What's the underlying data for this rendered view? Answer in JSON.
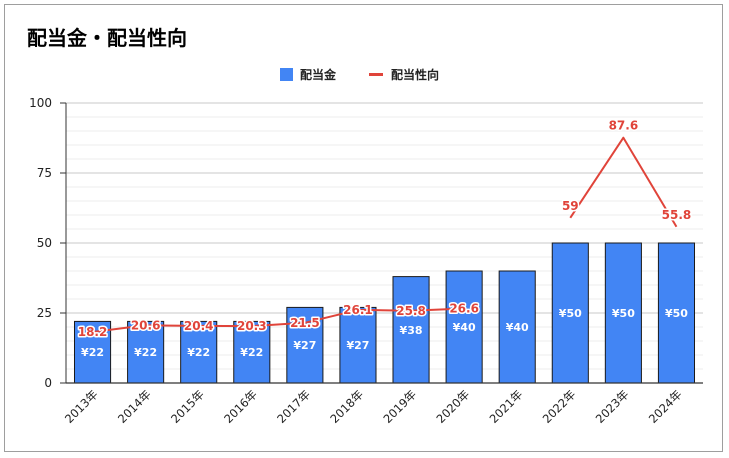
{
  "chart_data": {
    "type": "bar",
    "title": "配当金・配当性向",
    "categories": [
      "2013年",
      "2014年",
      "2015年",
      "2016年",
      "2017年",
      "2018年",
      "2019年",
      "2020年",
      "2021年",
      "2022年",
      "2023年",
      "2024年"
    ],
    "series": [
      {
        "name": "配当金",
        "type": "bar",
        "color": "#4285f4",
        "values": [
          22,
          22,
          22,
          22,
          27,
          27,
          38,
          40,
          40,
          50,
          50,
          50
        ],
        "labels": [
          "¥22",
          "¥22",
          "¥22",
          "¥22",
          "¥27",
          "¥27",
          "¥38",
          "¥40",
          "¥40",
          "¥50",
          "¥50",
          "¥50"
        ]
      },
      {
        "name": "配当性向",
        "type": "line",
        "color": "#e0443a",
        "values": [
          18.2,
          20.6,
          20.4,
          20.3,
          21.5,
          26.1,
          25.8,
          26.6,
          null,
          59,
          87.6,
          55.8
        ],
        "labels": [
          "18.2",
          "20.6",
          "20.4",
          "20.3",
          "21.5",
          "26.1",
          "25.8",
          "26.6",
          "",
          "59",
          "87.6",
          "55.8"
        ]
      }
    ],
    "ylim": [
      0,
      100
    ],
    "yticks": [
      0,
      25,
      50,
      75,
      100
    ],
    "grid": true,
    "legend": "top-center",
    "xlabel": "",
    "ylabel": ""
  }
}
